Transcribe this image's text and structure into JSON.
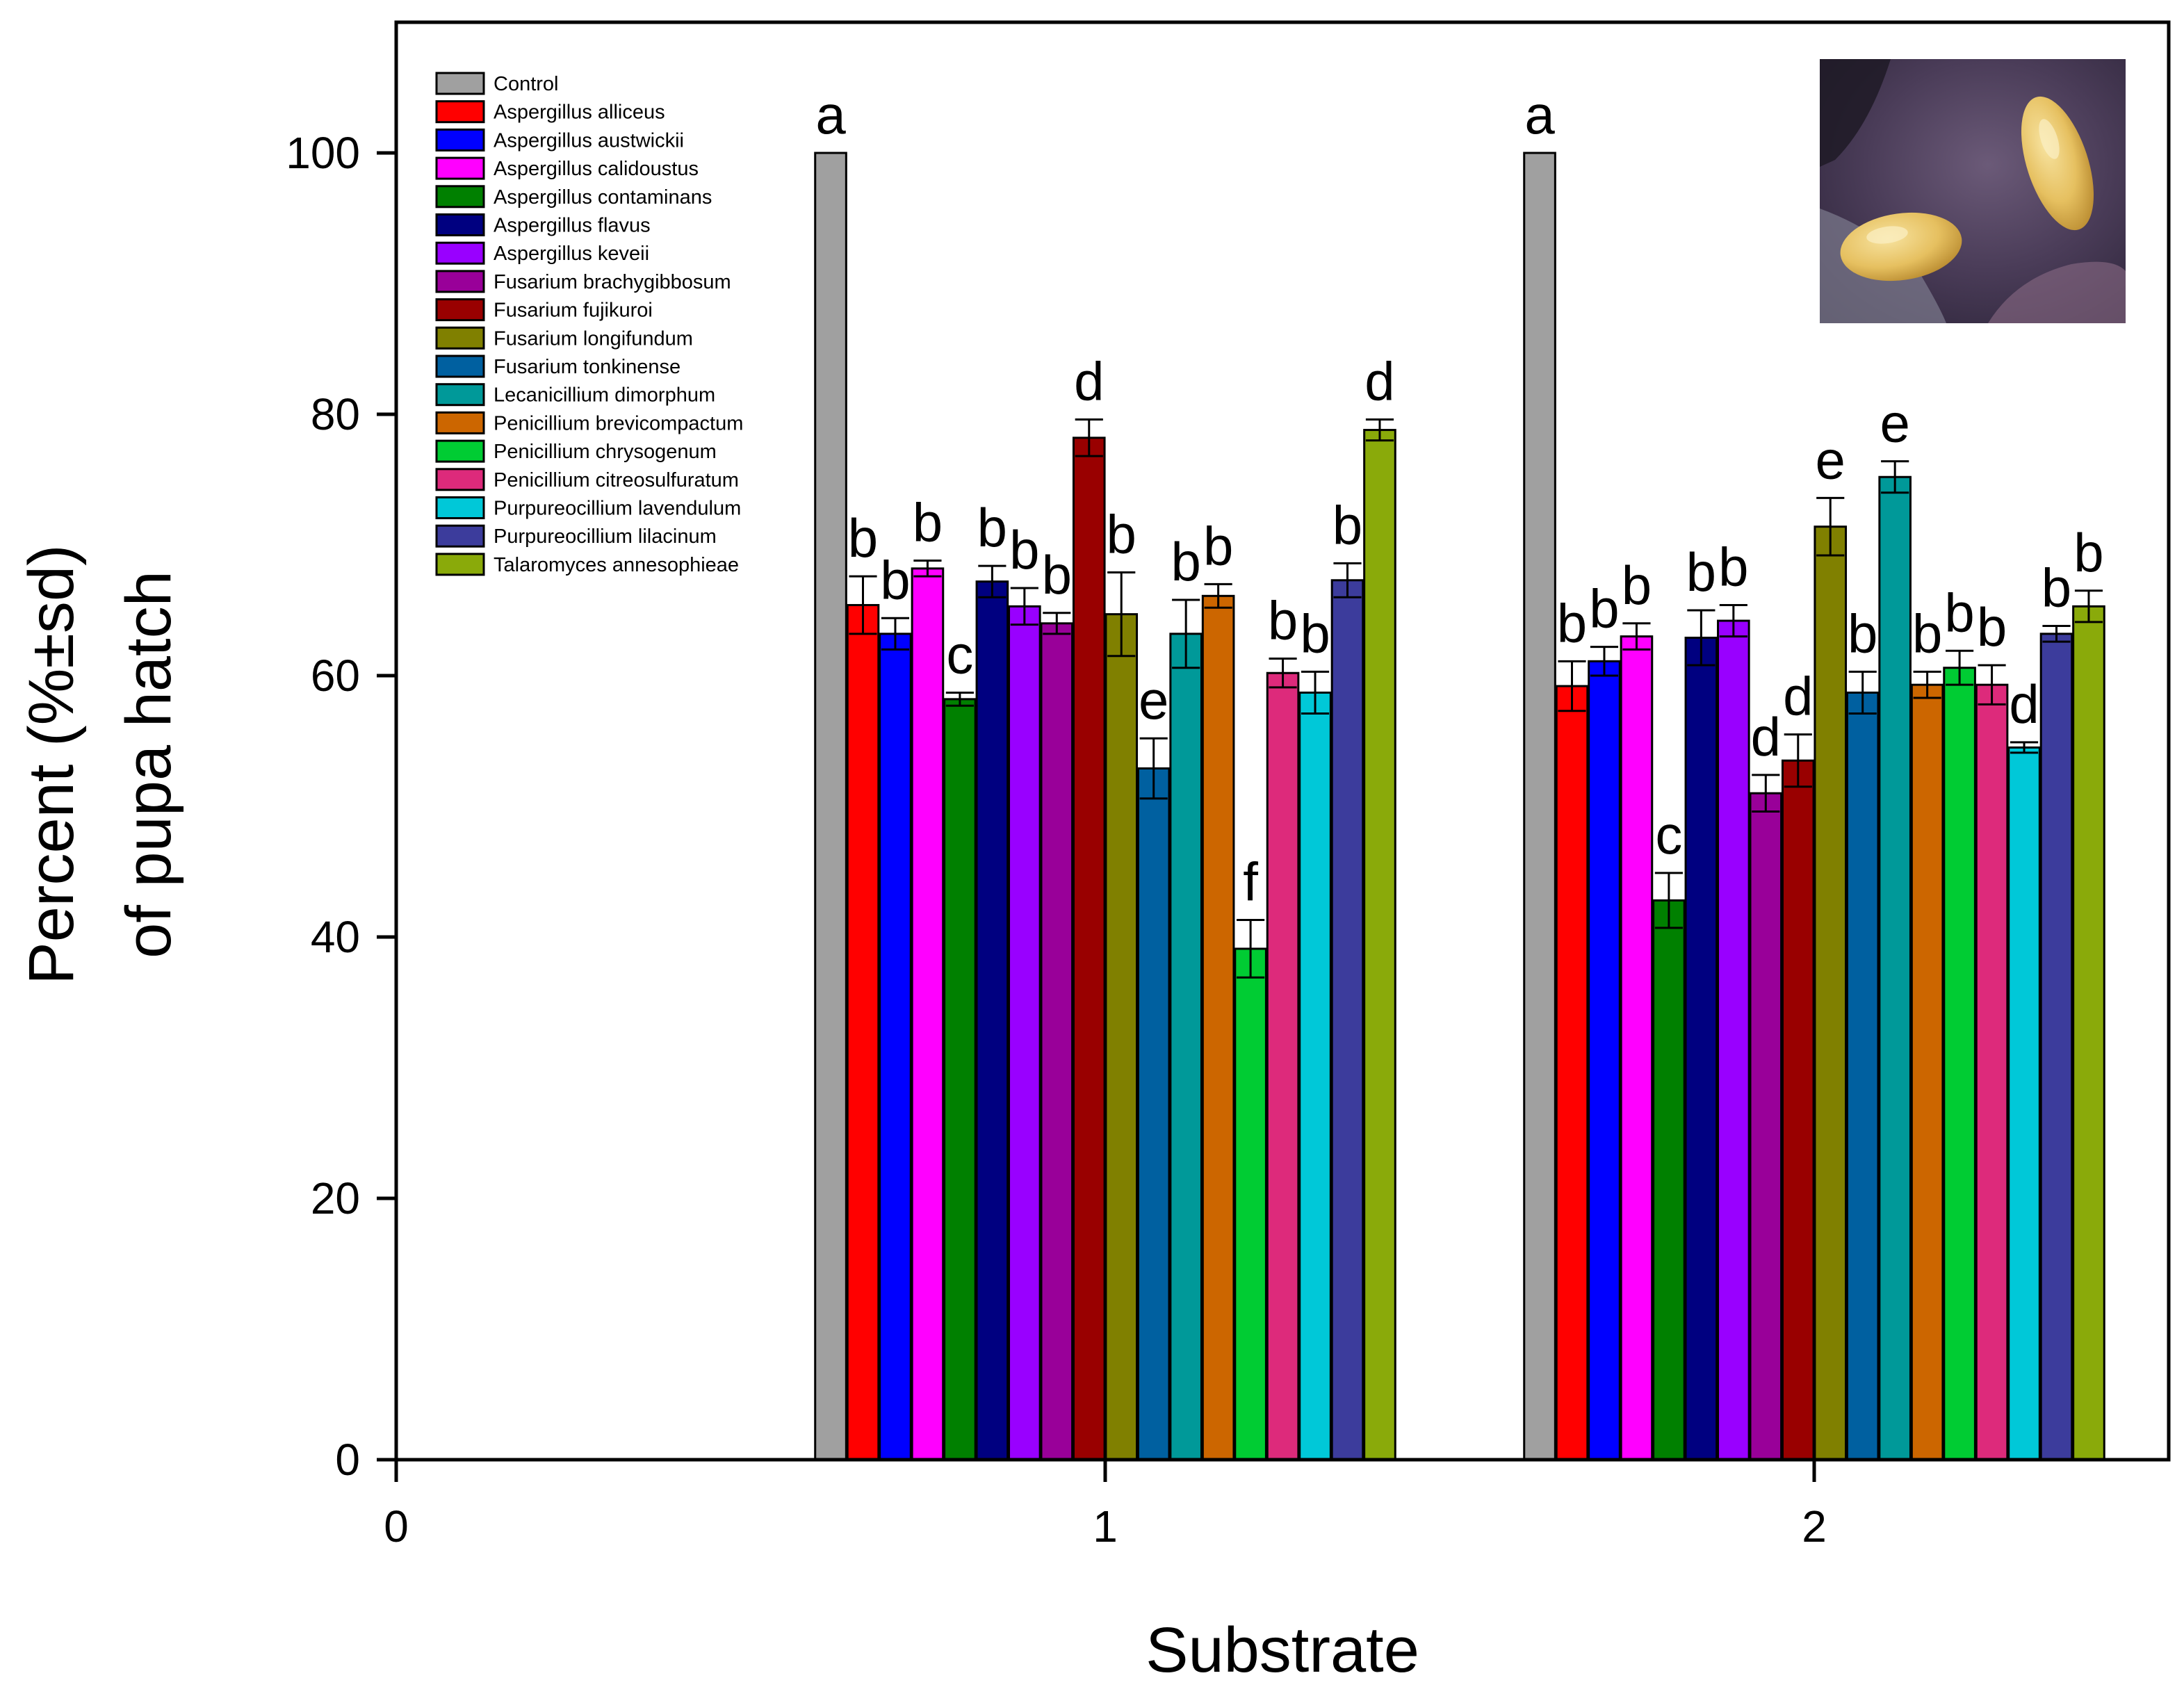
{
  "chart_data": {
    "type": "bar",
    "xlabel": "Substrate",
    "ylabel_line1": "Percent (%±sd)",
    "ylabel_line2": "of pupa hatch",
    "ylim": [
      0,
      110
    ],
    "xlim": [
      0,
      2.5
    ],
    "yticks": [
      "0",
      "20",
      "40",
      "60",
      "80",
      "100"
    ],
    "xticks": [
      "0",
      "1",
      "2"
    ],
    "legend_position": "top-left",
    "groups": [
      {
        "substrate": "1"
      },
      {
        "substrate": "2"
      }
    ],
    "series": [
      {
        "name": "Control",
        "color": "#a0a0a0",
        "values": [
          100,
          100
        ],
        "sd": [
          0,
          0
        ],
        "letters": [
          "a",
          "a"
        ]
      },
      {
        "name": "Aspergillus alliceus",
        "color": "#ff0000",
        "values": [
          65.4,
          59.2
        ],
        "sd": [
          2.2,
          1.9
        ],
        "letters": [
          "b",
          "b"
        ]
      },
      {
        "name": "Aspergillus austwickii",
        "color": "#0000ff",
        "values": [
          63.2,
          61.1
        ],
        "sd": [
          1.2,
          1.1
        ],
        "letters": [
          "b",
          "b"
        ]
      },
      {
        "name": "Aspergillus calidoustus",
        "color": "#ff00ff",
        "values": [
          68.2,
          63.0
        ],
        "sd": [
          0.6,
          1.0
        ],
        "letters": [
          "b",
          "b"
        ]
      },
      {
        "name": "Aspergillus contaminans",
        "color": "#008000",
        "values": [
          58.2,
          42.8
        ],
        "sd": [
          0.5,
          2.1
        ],
        "letters": [
          "c",
          "c"
        ]
      },
      {
        "name": "Aspergillus flavus",
        "color": "#000080",
        "values": [
          67.2,
          62.9
        ],
        "sd": [
          1.2,
          2.1
        ],
        "letters": [
          "b",
          "b"
        ]
      },
      {
        "name": "Aspergillus keveii",
        "color": "#9900ff",
        "values": [
          65.3,
          64.2
        ],
        "sd": [
          1.4,
          1.2
        ],
        "letters": [
          "b",
          "b"
        ]
      },
      {
        "name": "Fusarium brachygibbosum",
        "color": "#990099",
        "values": [
          64.0,
          51.0
        ],
        "sd": [
          0.8,
          1.4
        ],
        "letters": [
          "b",
          "d"
        ]
      },
      {
        "name": "Fusarium fujikuroi",
        "color": "#990000",
        "values": [
          78.2,
          53.5
        ],
        "sd": [
          1.4,
          2.0
        ],
        "letters": [
          "d",
          "d"
        ]
      },
      {
        "name": "Fusarium longifundum",
        "color": "#808000",
        "values": [
          64.7,
          71.4
        ],
        "sd": [
          3.2,
          2.2
        ],
        "letters": [
          "b",
          "e"
        ]
      },
      {
        "name": "Fusarium tonkinense",
        "color": "#0060a0",
        "values": [
          52.9,
          58.7
        ],
        "sd": [
          2.3,
          1.6
        ],
        "letters": [
          "e",
          "b"
        ]
      },
      {
        "name": "Lecanicillium dimorphum",
        "color": "#009999",
        "values": [
          63.2,
          75.2
        ],
        "sd": [
          2.6,
          1.2
        ],
        "letters": [
          "b",
          "e"
        ]
      },
      {
        "name": "Penicillium brevicompactum",
        "color": "#cc6600",
        "values": [
          66.1,
          59.3
        ],
        "sd": [
          0.9,
          1.0
        ],
        "letters": [
          "b",
          "b"
        ]
      },
      {
        "name": "Penicillium chrysogenum",
        "color": "#00cc33",
        "values": [
          39.1,
          60.6
        ],
        "sd": [
          2.2,
          1.3
        ],
        "letters": [
          "f",
          "b"
        ]
      },
      {
        "name": "Penicillium citreosulfuratum",
        "color": "#dd2a7b",
        "values": [
          60.2,
          59.3
        ],
        "sd": [
          1.1,
          1.5
        ],
        "letters": [
          "b",
          "b"
        ]
      },
      {
        "name": "Purpureocillium lavendulum",
        "color": "#00c8d8",
        "values": [
          58.7,
          54.5
        ],
        "sd": [
          1.6,
          0.4
        ],
        "letters": [
          "b",
          "d"
        ]
      },
      {
        "name": "Purpureocillium lilacinum",
        "color": "#3c3c9c",
        "values": [
          67.3,
          63.2
        ],
        "sd": [
          1.3,
          0.6
        ],
        "letters": [
          "b",
          "b"
        ]
      },
      {
        "name": "Talaromyces annesophieae",
        "color": "#8aaa0a",
        "values": [
          78.8,
          65.3
        ],
        "sd": [
          0.8,
          1.2
        ],
        "letters": [
          "d",
          "b"
        ]
      }
    ]
  }
}
